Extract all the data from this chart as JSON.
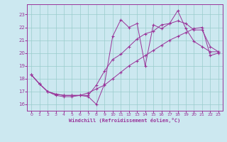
{
  "xlabel": "Windchill (Refroidissement éolien,°C)",
  "bg_color": "#cce8f0",
  "line_color": "#993399",
  "grid_color": "#99cccc",
  "xlim": [
    -0.5,
    23.5
  ],
  "ylim": [
    15.5,
    23.8
  ],
  "xticks": [
    0,
    1,
    2,
    3,
    4,
    5,
    6,
    7,
    8,
    9,
    10,
    11,
    12,
    13,
    14,
    15,
    16,
    17,
    18,
    19,
    20,
    21,
    22,
    23
  ],
  "yticks": [
    16,
    17,
    18,
    19,
    20,
    21,
    22,
    23
  ],
  "line_top_x": [
    0,
    1,
    2,
    3,
    4,
    5,
    6,
    7,
    8,
    9,
    10,
    11,
    12,
    13,
    14,
    15,
    16,
    17,
    18,
    19,
    20,
    21,
    22,
    23
  ],
  "line_top_y": [
    18.3,
    17.6,
    17.0,
    16.7,
    16.6,
    16.6,
    16.7,
    16.6,
    16.0,
    17.6,
    21.3,
    22.6,
    22.0,
    22.3,
    19.0,
    22.2,
    21.9,
    22.3,
    23.3,
    21.9,
    20.9,
    20.5,
    20.1,
    20.1
  ],
  "line_mid_x": [
    0,
    1,
    2,
    3,
    4,
    5,
    6,
    7,
    8,
    9,
    10,
    11,
    12,
    13,
    14,
    15,
    16,
    17,
    18,
    19,
    20,
    21,
    22,
    23
  ],
  "line_mid_y": [
    18.3,
    17.6,
    17.0,
    16.8,
    16.7,
    16.7,
    16.7,
    16.7,
    17.5,
    18.6,
    19.5,
    19.9,
    20.5,
    21.1,
    21.5,
    21.7,
    22.2,
    22.3,
    22.5,
    22.3,
    21.8,
    21.8,
    20.5,
    20.1
  ],
  "line_bot_x": [
    0,
    1,
    2,
    3,
    4,
    5,
    6,
    7,
    8,
    9,
    10,
    11,
    12,
    13,
    14,
    15,
    16,
    17,
    18,
    19,
    20,
    21,
    22,
    23
  ],
  "line_bot_y": [
    18.3,
    17.6,
    17.0,
    16.8,
    16.7,
    16.7,
    16.7,
    16.9,
    17.2,
    17.5,
    18.0,
    18.5,
    19.0,
    19.4,
    19.8,
    20.2,
    20.6,
    21.0,
    21.3,
    21.6,
    21.9,
    22.0,
    19.8,
    20.0
  ]
}
